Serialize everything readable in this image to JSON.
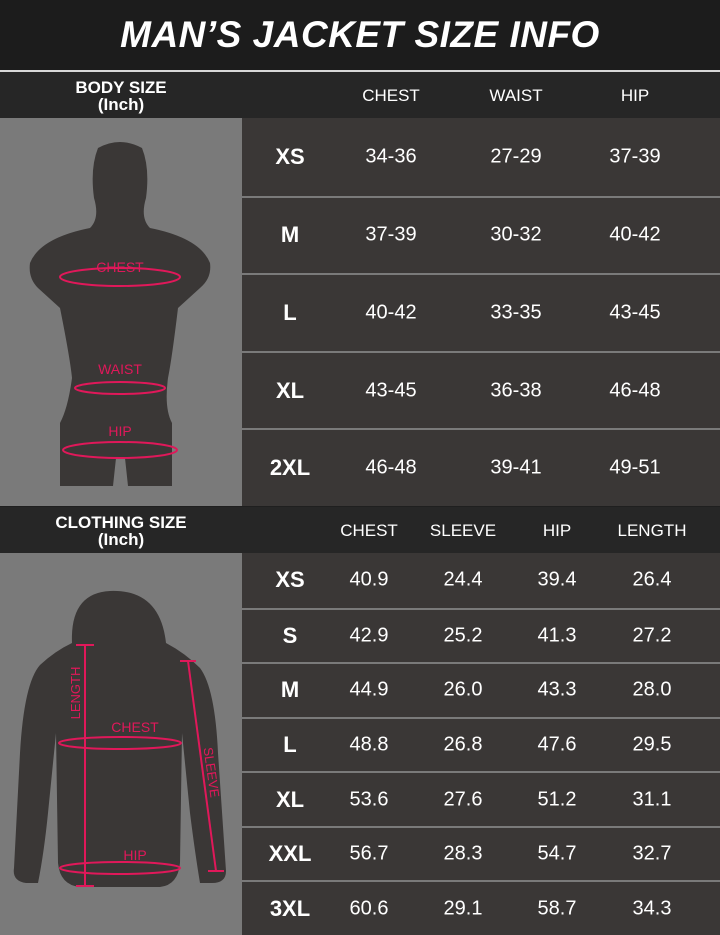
{
  "title": "MAN’S JACKET SIZE INFO",
  "body_size": {
    "label": "BODY SIZE",
    "unit": "(Inch)",
    "columns": [
      "CHEST",
      "WAIST",
      "HIP"
    ],
    "diagram_labels": {
      "chest": "CHEST",
      "waist": "WAIST",
      "hip": "HIP"
    },
    "rows": [
      {
        "size": "XS",
        "values": [
          "34-36",
          "27-29",
          "37-39"
        ]
      },
      {
        "size": "M",
        "values": [
          "37-39",
          "30-32",
          "40-42"
        ]
      },
      {
        "size": "L",
        "values": [
          "40-42",
          "33-35",
          "43-45"
        ]
      },
      {
        "size": "XL",
        "values": [
          "43-45",
          "36-38",
          "46-48"
        ]
      },
      {
        "size": "2XL",
        "values": [
          "46-48",
          "39-41",
          "49-51"
        ]
      }
    ]
  },
  "clothing_size": {
    "label": "CLOTHING SIZE",
    "unit": "(Inch)",
    "columns": [
      "CHEST",
      "SLEEVE",
      "HIP",
      "LENGTH"
    ],
    "diagram_labels": {
      "length": "LENGTH",
      "chest": "CHEST",
      "sleeve": "SLEEVE",
      "hip": "HIP"
    },
    "rows": [
      {
        "size": "XS",
        "values": [
          "40.9",
          "24.4",
          "39.4",
          "26.4"
        ]
      },
      {
        "size": "S",
        "values": [
          "42.9",
          "25.2",
          "41.3",
          "27.2"
        ]
      },
      {
        "size": "M",
        "values": [
          "44.9",
          "26.0",
          "43.3",
          "28.0"
        ]
      },
      {
        "size": "L",
        "values": [
          "48.8",
          "26.8",
          "47.6",
          "29.5"
        ]
      },
      {
        "size": "XL",
        "values": [
          "53.6",
          "27.6",
          "51.2",
          "31.1"
        ]
      },
      {
        "size": "XXL",
        "values": [
          "56.7",
          "28.3",
          "54.7",
          "32.7"
        ]
      },
      {
        "size": "3XL",
        "values": [
          "60.6",
          "29.1",
          "58.7",
          "34.3"
        ]
      }
    ]
  },
  "colors": {
    "accent": "#e0185a",
    "cell": "#3a3736",
    "panel": "#7a7a7a",
    "header": "#262626"
  }
}
